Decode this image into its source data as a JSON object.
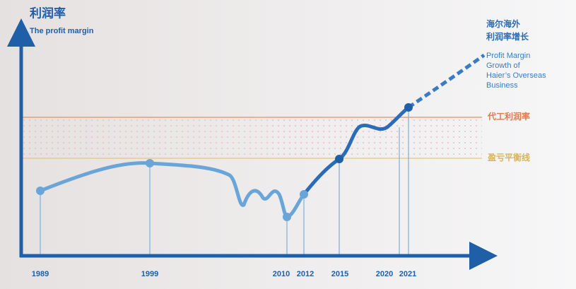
{
  "header": {
    "title": "利润率",
    "subtitle": "The profit margin"
  },
  "bands": {
    "upper": "代工利润率",
    "lower": "盈亏平衡线"
  },
  "annotation": {
    "zh": [
      "海尔海外",
      "利润率增长"
    ],
    "en": [
      "Profit Margin",
      "Growth of",
      "Haier’s Overseas",
      "Business"
    ]
  },
  "years": [
    "1989",
    "1999",
    "2010",
    "2012",
    "2015",
    "2020",
    "2021"
  ]
}
